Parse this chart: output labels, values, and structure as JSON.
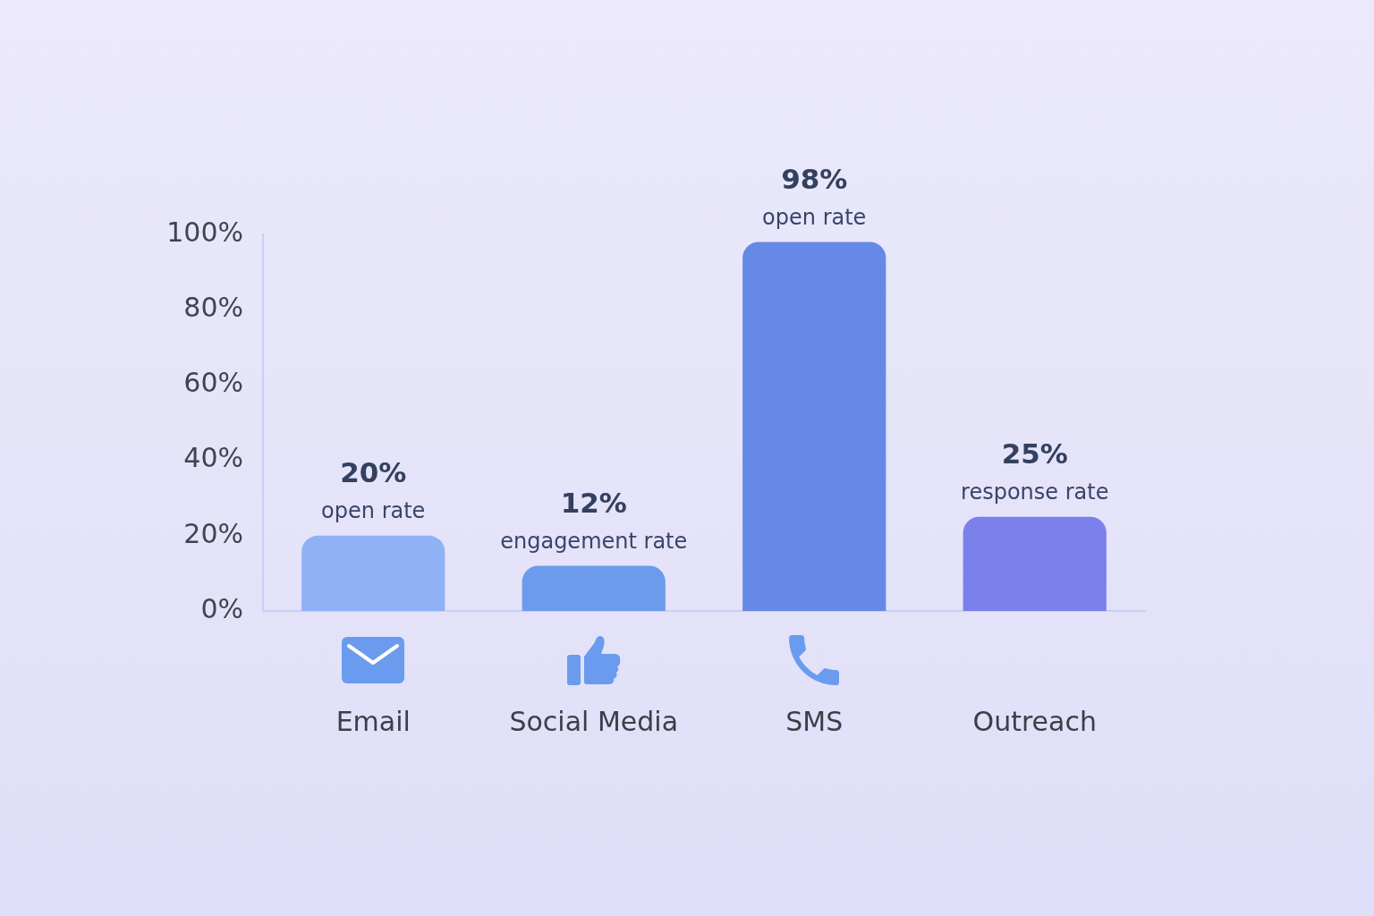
{
  "chart_data": {
    "type": "bar",
    "categories": [
      "Email",
      "Social Media",
      "SMS",
      "Outreach"
    ],
    "values": [
      20,
      12,
      98,
      25
    ],
    "colors": [
      "#8fb1f6",
      "#6c9bec",
      "#6689e8",
      "#7b80eb"
    ],
    "ylim": [
      0,
      100
    ],
    "yticks": [
      {
        "value": 0,
        "label": "0%"
      },
      {
        "value": 20,
        "label": "20%"
      },
      {
        "value": 40,
        "label": "40%"
      },
      {
        "value": 60,
        "label": "60%"
      },
      {
        "value": 80,
        "label": "80%"
      },
      {
        "value": 100,
        "label": "100%"
      }
    ],
    "value_labels": [
      "20%",
      "12%",
      "98%",
      "25%"
    ],
    "annotations": [
      {
        "text": "open rate",
        "x": "Email",
        "y": 20
      },
      {
        "text": "engagement rate",
        "x": "Social Media",
        "y": 12
      },
      {
        "text": "open rate",
        "x": "SMS",
        "y": 98
      },
      {
        "text": "response rate",
        "x": "Outreach",
        "y": 25
      }
    ],
    "legend": false
  }
}
